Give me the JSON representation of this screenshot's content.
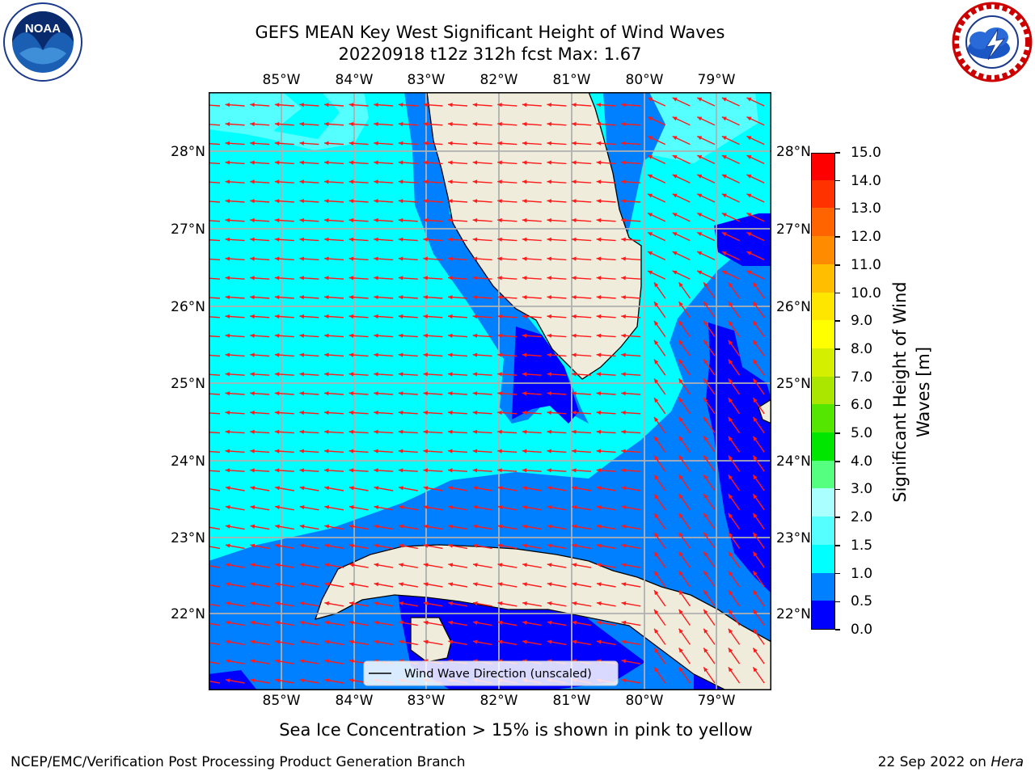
{
  "header": {
    "title": "GEFS MEAN Key West Significant Height of Wind Waves",
    "subtitle": "20220918 t12z 312h fcst   Max: 1.67"
  },
  "logos": {
    "left": {
      "icon": "noaa-logo",
      "text": "NOAA"
    },
    "right": {
      "icon": "nws-logo"
    }
  },
  "map": {
    "longitude_ticks": [
      "85°W",
      "84°W",
      "83°W",
      "82°W",
      "81°W",
      "80°W",
      "79°W"
    ],
    "latitude_ticks": [
      "28°N",
      "27°N",
      "26°N",
      "25°N",
      "24°N",
      "23°N",
      "22°N"
    ],
    "legend_label": "Wind Wave Direction (unscaled)",
    "colors": {
      "land": "#efecdc",
      "coast": "#000000",
      "grid": "#b0b0b0",
      "arrow": "#ff1a1a"
    }
  },
  "colorbar": {
    "title_line1": "Significant Height of Wind",
    "title_line2": "Waves [m]",
    "levels": [
      "0.0",
      "0.5",
      "1.0",
      "1.5",
      "2.0",
      "3.0",
      "4.0",
      "5.0",
      "6.0",
      "7.0",
      "8.0",
      "9.0",
      "10.0",
      "11.0",
      "12.0",
      "13.0",
      "14.0",
      "15.0"
    ],
    "colors": [
      "#0000ff",
      "#007fff",
      "#00ffff",
      "#55ffff",
      "#aaffff",
      "#55ff7f",
      "#00e600",
      "#55e600",
      "#aae600",
      "#d4f000",
      "#ffff00",
      "#ffe600",
      "#ffbf00",
      "#ff8c00",
      "#ff6400",
      "#ff3200",
      "#ff0000"
    ]
  },
  "footer": {
    "ice_note": "Sea Ice Concentration > 15% is shown in pink to yellow",
    "credit_left": "NCEP/EMC/Verification Post Processing Product Generation Branch",
    "credit_date": "22 Sep 2022 on",
    "credit_host": "Hera"
  }
}
